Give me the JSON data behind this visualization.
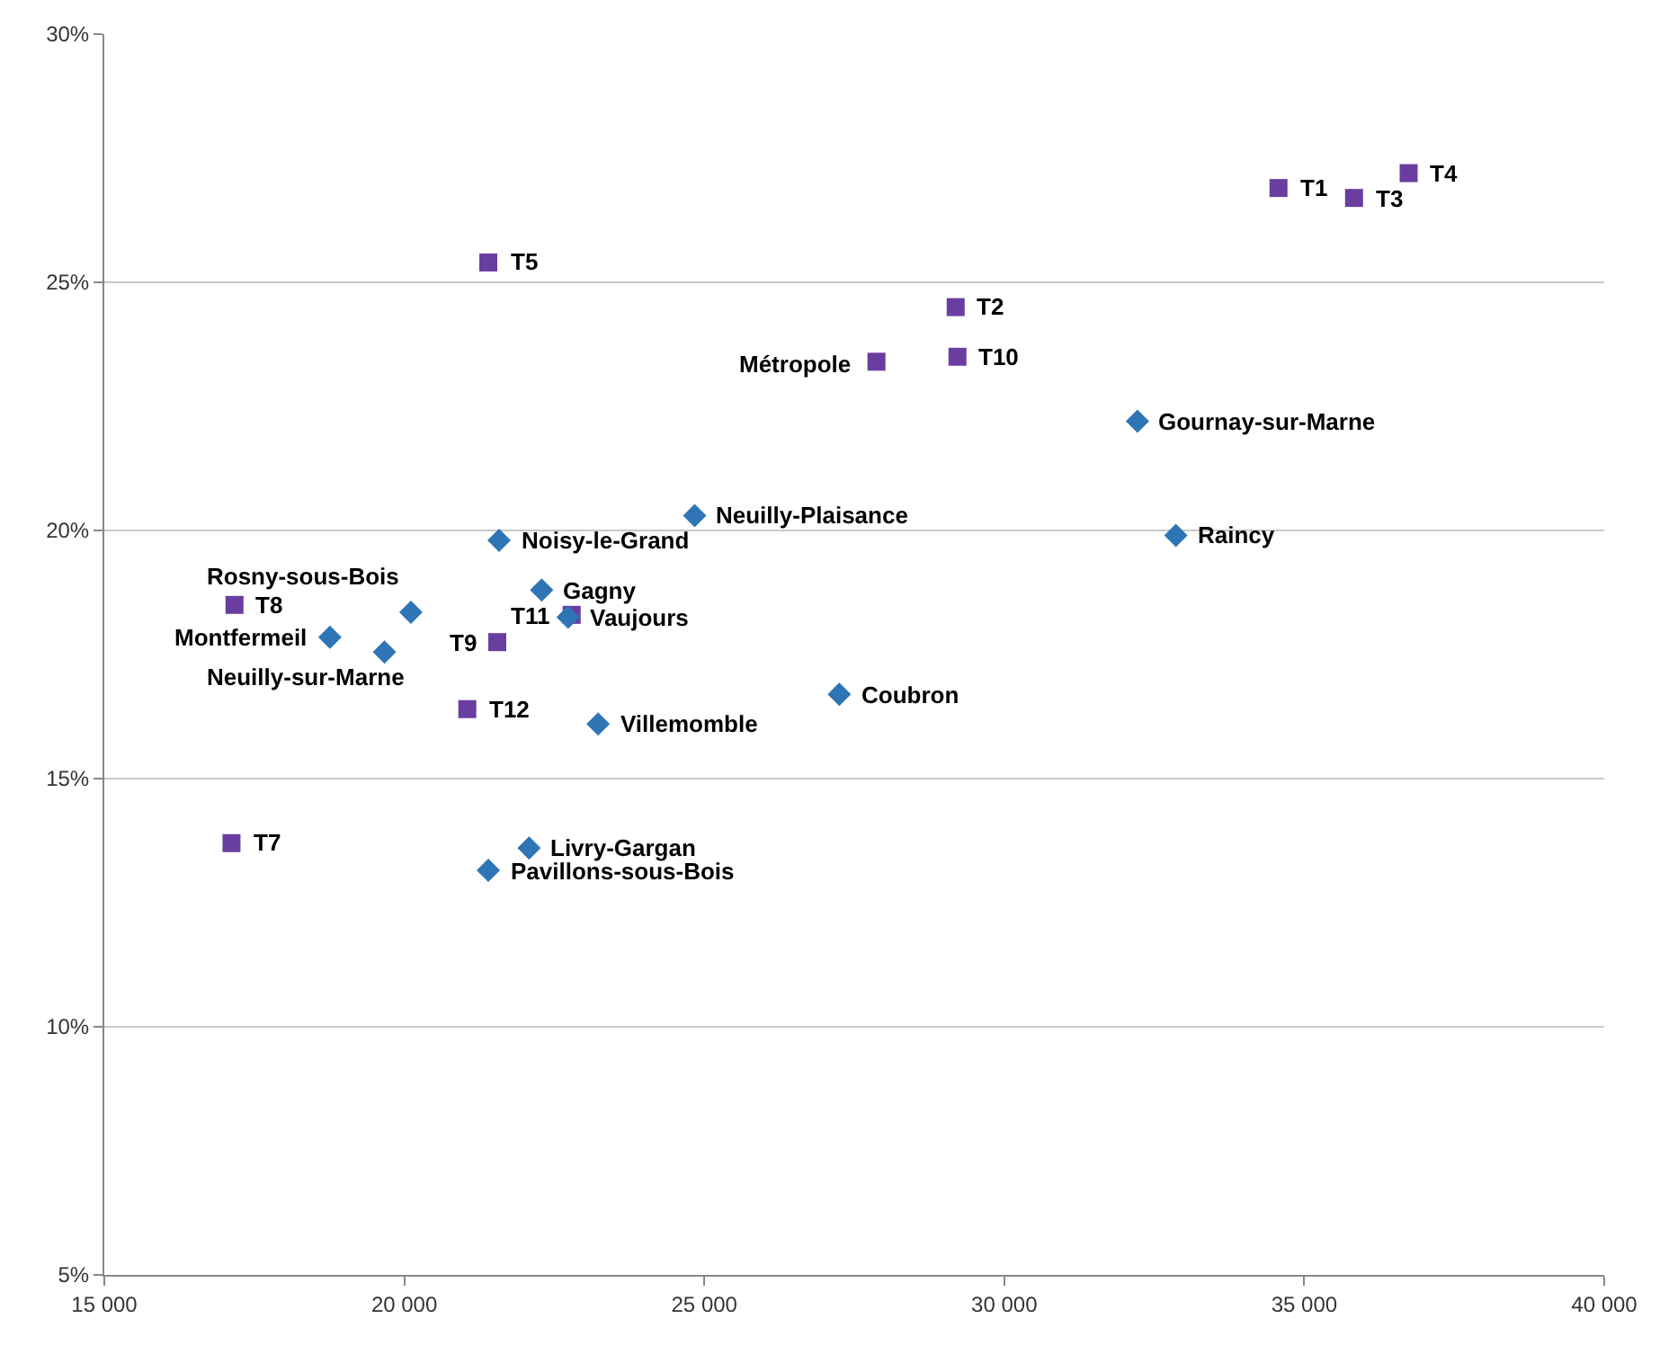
{
  "chart_data": {
    "type": "scatter",
    "grid": "y",
    "xlim": [
      15000,
      40000
    ],
    "xticks": [
      {
        "value": 15000,
        "label": "15 000"
      },
      {
        "value": 20000,
        "label": "20 000"
      },
      {
        "value": 25000,
        "label": "25 000"
      },
      {
        "value": 30000,
        "label": "30 000"
      },
      {
        "value": 35000,
        "label": "35 000"
      },
      {
        "value": 40000,
        "label": "40 000"
      }
    ],
    "ylim": [
      5,
      30
    ],
    "yticks": [
      {
        "value": 5,
        "label": "5%"
      },
      {
        "value": 10,
        "label": "10%"
      },
      {
        "value": 15,
        "label": "15%"
      },
      {
        "value": 20,
        "label": "20%"
      },
      {
        "value": 25,
        "label": "25%"
      },
      {
        "value": 30,
        "label": "30%"
      }
    ],
    "series": [
      {
        "color": "#6a3ea1",
        "marker": "square",
        "x": [
          36740,
          34570,
          35830,
          21400,
          29190,
          29220,
          27870,
          17170,
          22790,
          21550,
          21050,
          17120
        ],
        "values": [
          27.2,
          26.9,
          26.7,
          25.4,
          24.5,
          23.5,
          23.4,
          18.5,
          18.3,
          17.75,
          16.4,
          13.7
        ]
      },
      {
        "color": "#2e75b6",
        "marker": "diamond",
        "x": [
          32220,
          32860,
          24840,
          21580,
          22290,
          20110,
          18760,
          19670,
          22730,
          27250,
          23230,
          22080,
          21400
        ],
        "values": [
          22.2,
          19.9,
          20.3,
          19.8,
          18.8,
          18.35,
          17.85,
          17.55,
          18.25,
          16.7,
          16.1,
          13.6,
          13.15
        ]
      }
    ],
    "annotations": [
      {
        "text": "T4",
        "x": 36740,
        "y": 27.2
      },
      {
        "text": "T1",
        "x": 34570,
        "y": 26.9
      },
      {
        "text": "T3",
        "x": 35830,
        "y": 26.7
      },
      {
        "text": "T5",
        "x": 21400,
        "y": 25.4
      },
      {
        "text": "T2",
        "x": 29190,
        "y": 24.5
      },
      {
        "text": "T10",
        "x": 29220,
        "y": 23.5
      },
      {
        "text": "Métropole",
        "x": 27870,
        "y": 23.4
      },
      {
        "text": "T8",
        "x": 17170,
        "y": 18.5
      },
      {
        "text": "T11",
        "x": 22790,
        "y": 18.3
      },
      {
        "text": "T9",
        "x": 21550,
        "y": 17.75
      },
      {
        "text": "T12",
        "x": 21050,
        "y": 16.4
      },
      {
        "text": "T7",
        "x": 17120,
        "y": 13.7
      },
      {
        "text": "Gournay-sur-Marne",
        "x": 32220,
        "y": 22.2
      },
      {
        "text": "Raincy",
        "x": 32860,
        "y": 19.9
      },
      {
        "text": "Neuilly-Plaisance",
        "x": 24840,
        "y": 20.3
      },
      {
        "text": "Noisy-le-Grand",
        "x": 21580,
        "y": 19.8
      },
      {
        "text": "Gagny",
        "x": 22290,
        "y": 18.8
      },
      {
        "text": "Rosny-sous-Bois",
        "x": 20110,
        "y": 18.35
      },
      {
        "text": "Montfermeil",
        "x": 18760,
        "y": 17.85
      },
      {
        "text": "Neuilly-sur-Marne",
        "x": 19670,
        "y": 17.55
      },
      {
        "text": "Vaujours",
        "x": 22730,
        "y": 18.25
      },
      {
        "text": "Coubron",
        "x": 27250,
        "y": 16.7
      },
      {
        "text": "Villemomble",
        "x": 23230,
        "y": 16.1
      },
      {
        "text": "Livry-Gargan",
        "x": 22080,
        "y": 13.6
      },
      {
        "text": "Pavillons-sous-Bois",
        "x": 21400,
        "y": 13.15
      }
    ]
  }
}
